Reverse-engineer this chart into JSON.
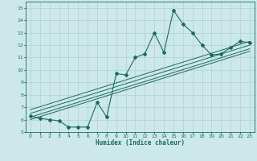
{
  "xlabel": "Humidex (Indice chaleur)",
  "bg_color": "#cde8e8",
  "line_color": "#1a6b5a",
  "grid_color": "#b0d0d0",
  "xlim_min": -0.5,
  "xlim_max": 23.5,
  "ylim_min": 5.0,
  "ylim_max": 15.5,
  "xticks": [
    0,
    1,
    2,
    3,
    4,
    5,
    6,
    7,
    8,
    9,
    10,
    11,
    12,
    13,
    14,
    15,
    16,
    17,
    18,
    19,
    20,
    21,
    22,
    23
  ],
  "yticks": [
    5,
    6,
    7,
    8,
    9,
    10,
    11,
    12,
    13,
    14,
    15
  ],
  "main_x": [
    0,
    1,
    2,
    3,
    4,
    5,
    6,
    7,
    8,
    9,
    10,
    11,
    12,
    13,
    14,
    15,
    16,
    17,
    18,
    19,
    20,
    21,
    22,
    23
  ],
  "main_y": [
    6.3,
    6.1,
    6.0,
    5.9,
    5.4,
    5.4,
    5.4,
    7.4,
    6.2,
    9.7,
    9.6,
    11.0,
    11.3,
    13.0,
    11.4,
    14.8,
    13.7,
    13.0,
    12.0,
    11.2,
    11.3,
    11.8,
    12.3,
    12.2
  ],
  "reg_lines": [
    {
      "x0": 0,
      "y0": 6.0,
      "x1": 23,
      "y1": 11.5
    },
    {
      "x0": 0,
      "y0": 6.2,
      "x1": 23,
      "y1": 11.7
    },
    {
      "x0": 0,
      "y0": 6.5,
      "x1": 23,
      "y1": 12.0
    },
    {
      "x0": 0,
      "y0": 6.8,
      "x1": 23,
      "y1": 12.3
    }
  ]
}
